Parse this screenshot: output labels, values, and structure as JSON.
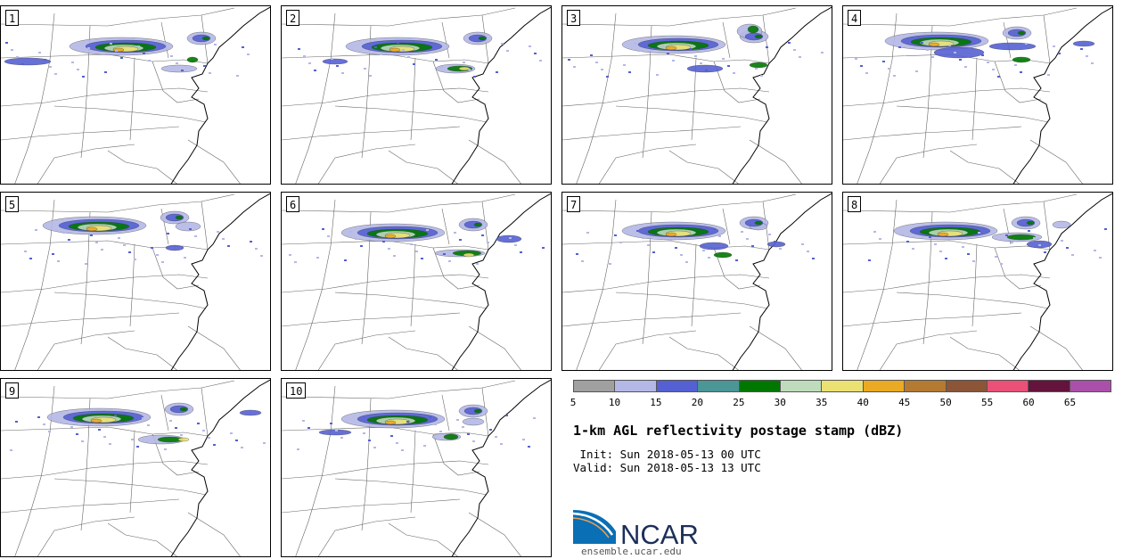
{
  "figure": {
    "title": "1-km AGL reflectivity postage stamp (dBZ)",
    "init_line": " Init: Sun 2018-05-13 00 UTC",
    "valid_line": "Valid: Sun 2018-05-13 13 UTC",
    "website": "ensemble.ucar.edu",
    "logo_text": "NCAR"
  },
  "panels": [
    "1",
    "2",
    "3",
    "4",
    "5",
    "6",
    "7",
    "8",
    "9",
    "10"
  ],
  "colorbar": {
    "ticks": [
      "5",
      "10",
      "15",
      "20",
      "25",
      "30",
      "35",
      "40",
      "45",
      "50",
      "55",
      "60",
      "65"
    ],
    "colors": [
      "#a0a0a0",
      "#b4b8e6",
      "#5560d2",
      "#4b9696",
      "#007800",
      "#bedcbc",
      "#ebe173",
      "#ebaa24",
      "#b47a32",
      "#8c5537",
      "#eb5078",
      "#64143c",
      "#aa50aa"
    ]
  },
  "colors": {
    "border": "#000000",
    "state_lines": "#666666",
    "coast": "#000000"
  }
}
